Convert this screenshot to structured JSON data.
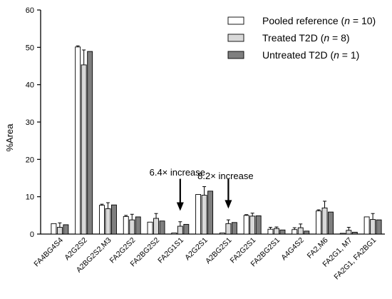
{
  "chart_data": {
    "type": "bar",
    "ylabel": "%Area",
    "ylim": [
      0,
      60
    ],
    "yticks": [
      0,
      10,
      20,
      30,
      40,
      50,
      60
    ],
    "categories": [
      "FA4BG4S4",
      "A2G2S2",
      "A2BG2S2,M3",
      "FA2G2S2",
      "FA2BG2S2",
      "FA2G1S1",
      "A2G2S1",
      "A2BG2S1",
      "FA2G2S1",
      "FA2BG2S1",
      "A4G4S2",
      "FA2,M6",
      "FA2G1, M7",
      "FA2G1, FA2BG1"
    ],
    "legend_position": "top-right",
    "series": [
      {
        "legend_parts": [
          "Pooled reference (",
          "n",
          " = 10)"
        ],
        "color": "#ffffff",
        "values": [
          2.8,
          50.1,
          7.7,
          4.7,
          3.2,
          0.3,
          10.6,
          0.3,
          5.0,
          1.3,
          1.2,
          6.2,
          0.2,
          4.6
        ],
        "errors": [
          0.0,
          0.3,
          0.3,
          0.3,
          0.0,
          0.0,
          0.0,
          0.0,
          0.2,
          0.5,
          0.5,
          0.3,
          0.0,
          0.0
        ]
      },
      {
        "legend_parts": [
          "Treated T2D (",
          "n",
          " = 8)"
        ],
        "color": "#d9d9d9",
        "values": [
          1.8,
          45.3,
          6.8,
          3.8,
          4.2,
          2.1,
          10.4,
          2.8,
          4.8,
          1.5,
          1.7,
          7.0,
          1.0,
          3.9
        ],
        "errors": [
          1.2,
          4.0,
          1.6,
          1.5,
          1.3,
          1.2,
          2.3,
          1.0,
          0.8,
          0.4,
          1.0,
          1.8,
          0.8,
          1.6
        ]
      },
      {
        "legend_parts": [
          "Untreated T2D (",
          "n",
          " = 1)"
        ],
        "color": "#7f7f7f",
        "values": [
          2.5,
          48.9,
          7.8,
          4.6,
          3.5,
          2.6,
          11.5,
          3.1,
          4.9,
          1.1,
          0.8,
          5.9,
          0.5,
          3.8
        ],
        "errors": [
          0,
          0,
          0,
          0,
          0,
          0,
          0,
          0,
          0,
          0,
          0,
          0,
          0,
          0
        ]
      }
    ],
    "annotations": [
      {
        "text": "6.4× increase",
        "category_index": 5,
        "arrow_top": 14.8,
        "arrow_bottom": 6.2,
        "label_y": 15.7
      },
      {
        "text": "8.2× increase",
        "category_index": 7,
        "arrow_top": 14.8,
        "arrow_bottom": 6.8,
        "label_y": 14.7
      }
    ]
  }
}
